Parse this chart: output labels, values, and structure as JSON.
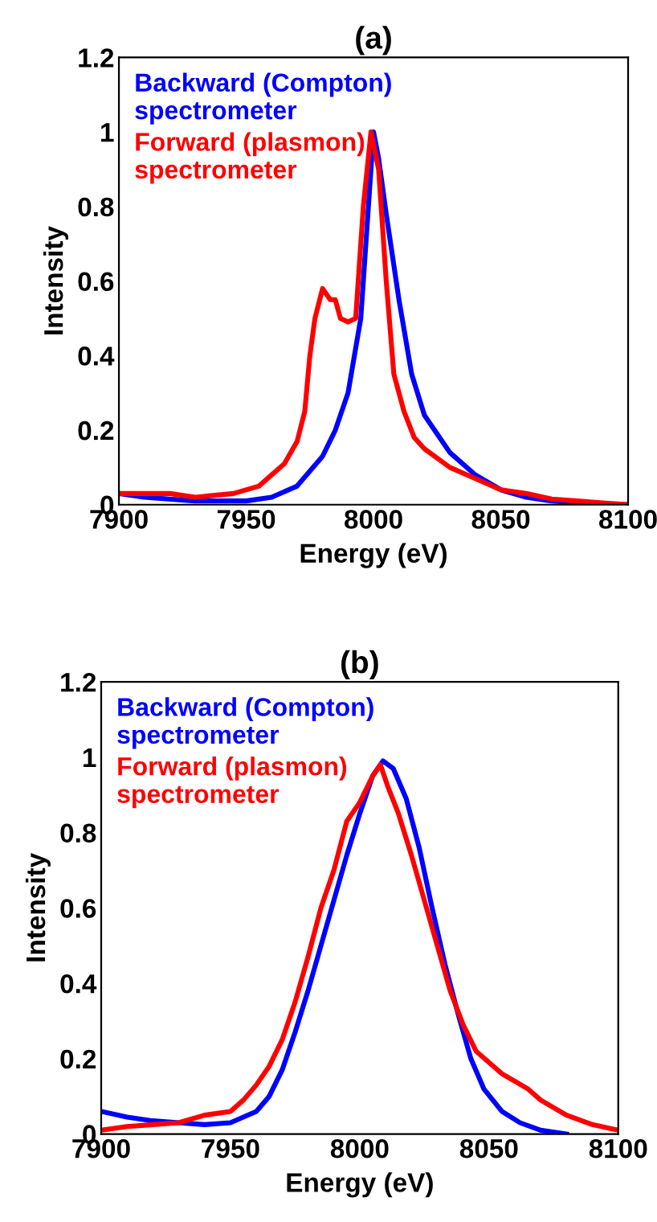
{
  "chart_data": [
    {
      "type": "line",
      "title": "(a)",
      "xlabel": "Energy (eV)",
      "ylabel": "Intensity",
      "xlim": [
        7900,
        8100
      ],
      "xticks": [
        7900,
        7950,
        8000,
        8050,
        8100
      ],
      "ylim": [
        0,
        1.2
      ],
      "yticks": [
        0,
        0.2,
        0.4,
        0.6,
        0.8,
        1,
        1.2
      ],
      "grid": false,
      "legend": "top left",
      "line_style": "solid",
      "marker": "none",
      "series": [
        {
          "name": "Backward (Compton)\nspectrometer",
          "color": "#0000ff",
          "x": [
            7900,
            7910,
            7930,
            7950,
            7960,
            7970,
            7980,
            7985,
            7990,
            7995,
            7998,
            8000,
            8002,
            8005,
            8010,
            8015,
            8020,
            8025,
            8030,
            8040,
            8050,
            8060,
            8070,
            8080,
            8100
          ],
          "values": [
            0.03,
            0.02,
            0.01,
            0.01,
            0.02,
            0.05,
            0.13,
            0.2,
            0.3,
            0.5,
            0.8,
            1.0,
            0.93,
            0.78,
            0.55,
            0.35,
            0.24,
            0.19,
            0.14,
            0.08,
            0.04,
            0.02,
            0.01,
            0.005,
            0.0
          ]
        },
        {
          "name": "Forward (plasmon)\nspectrometer",
          "color": "#ff0000",
          "x": [
            7900,
            7920,
            7930,
            7945,
            7955,
            7965,
            7970,
            7973,
            7975,
            7977,
            7980,
            7983,
            7985,
            7987,
            7990,
            7993,
            7996,
            7999,
            8002,
            8005,
            8008,
            8012,
            8016,
            8020,
            8030,
            8040,
            8050,
            8060,
            8070,
            8080,
            8090,
            8100
          ],
          "values": [
            0.03,
            0.03,
            0.02,
            0.03,
            0.05,
            0.11,
            0.17,
            0.25,
            0.4,
            0.5,
            0.58,
            0.55,
            0.55,
            0.5,
            0.49,
            0.5,
            0.8,
            1.0,
            0.9,
            0.6,
            0.35,
            0.25,
            0.18,
            0.15,
            0.1,
            0.07,
            0.04,
            0.03,
            0.015,
            0.01,
            0.005,
            0.0
          ]
        }
      ]
    },
    {
      "type": "line",
      "title": "(b)",
      "xlabel": "Energy (eV)",
      "ylabel": "Intensity",
      "xlim": [
        7900,
        8100
      ],
      "xticks": [
        7900,
        7950,
        8000,
        8050,
        8100
      ],
      "ylim": [
        0,
        1.2
      ],
      "yticks": [
        0,
        0.2,
        0.4,
        0.6,
        0.8,
        1,
        1.2
      ],
      "grid": false,
      "legend": "top left",
      "line_style": "solid",
      "marker": "none",
      "series": [
        {
          "name": "Backward (Compton)\nspectrometer",
          "color": "#0000ff",
          "x": [
            7900,
            7910,
            7920,
            7930,
            7940,
            7950,
            7960,
            7965,
            7970,
            7975,
            7980,
            7985,
            7990,
            7995,
            8000,
            8005,
            8009,
            8013,
            8018,
            8023,
            8028,
            8033,
            8038,
            8043,
            8048,
            8055,
            8062,
            8070,
            8080
          ],
          "values": [
            0.06,
            0.045,
            0.035,
            0.03,
            0.025,
            0.03,
            0.06,
            0.1,
            0.17,
            0.27,
            0.38,
            0.5,
            0.62,
            0.74,
            0.85,
            0.95,
            0.99,
            0.97,
            0.89,
            0.76,
            0.6,
            0.45,
            0.32,
            0.2,
            0.12,
            0.06,
            0.03,
            0.01,
            0.0
          ]
        },
        {
          "name": "Forward (plasmon)\nspectrometer",
          "color": "#ff0000",
          "x": [
            7900,
            7910,
            7920,
            7930,
            7940,
            7950,
            7955,
            7960,
            7965,
            7970,
            7975,
            7980,
            7985,
            7990,
            7995,
            8000,
            8005,
            8008,
            8011,
            8015,
            8020,
            8025,
            8030,
            8035,
            8040,
            8045,
            8050,
            8055,
            8060,
            8065,
            8070,
            8080,
            8090,
            8100
          ],
          "values": [
            0.01,
            0.02,
            0.025,
            0.03,
            0.05,
            0.06,
            0.09,
            0.13,
            0.18,
            0.25,
            0.35,
            0.47,
            0.6,
            0.7,
            0.83,
            0.88,
            0.95,
            0.98,
            0.92,
            0.85,
            0.74,
            0.62,
            0.5,
            0.38,
            0.29,
            0.22,
            0.19,
            0.16,
            0.14,
            0.12,
            0.09,
            0.05,
            0.025,
            0.01
          ]
        }
      ]
    }
  ]
}
